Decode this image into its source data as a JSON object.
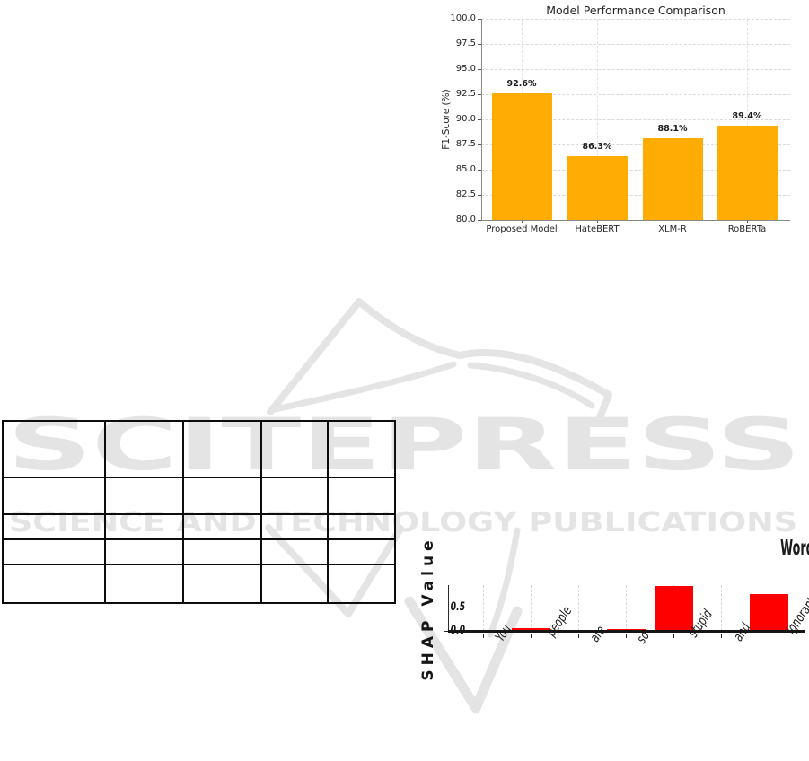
{
  "page": {
    "background": "#ffffff"
  },
  "watermark": {
    "brand_text": "SCITEPRESS",
    "tagline_text": "SCIENCE AND TECHNOLOGY PUBLICATIONS",
    "color": "#e4e4e4"
  },
  "results_table": {
    "columns": 5,
    "rows": 5,
    "cells": [
      [
        "",
        "",
        "",
        "",
        ""
      ],
      [
        "",
        "",
        "",
        "",
        ""
      ],
      [
        "",
        "",
        "",
        "",
        ""
      ],
      [
        "",
        "",
        "",
        "",
        ""
      ],
      [
        "",
        "",
        "",
        "",
        ""
      ]
    ]
  },
  "chart_data": [
    {
      "id": "model-performance",
      "type": "bar",
      "title": "Model Performance Comparison",
      "xlabel": "",
      "ylabel": "F1-Score (%)",
      "categories": [
        "Proposed Model",
        "HateBERT",
        "XLM-R",
        "RoBERTa"
      ],
      "values": [
        92.6,
        86.3,
        88.1,
        89.4
      ],
      "value_labels": [
        "92.6%",
        "86.3%",
        "88.1%",
        "89.4%"
      ],
      "ylim": [
        80.0,
        100.0
      ],
      "yticks": [
        80.0,
        82.5,
        85.0,
        87.5,
        90.0,
        92.5,
        95.0,
        97.5,
        100.0
      ],
      "bar_color": "#FFAD05",
      "grid": true,
      "grid_style": "dashed",
      "legend": null
    },
    {
      "id": "shap-word-importance",
      "type": "bar",
      "title": "Word Importance Based on SHAP for Hate Prediction",
      "xlabel": "",
      "ylabel": "SHAP Value",
      "categories": [
        "You",
        "people",
        "are",
        "so",
        "stupid",
        "and",
        "ignorant"
      ],
      "values": [
        0.0,
        0.05,
        0.0,
        0.04,
        0.96,
        0.0,
        0.78
      ],
      "ylim": [
        0.0,
        1.0
      ],
      "yticks": [
        0.0,
        0.5
      ],
      "bar_color": "#FF0000",
      "grid": true,
      "grid_style": "vertical dashed, horizontal dotted at 0.5",
      "x_tick_rotation_deg": 55,
      "legend": null
    }
  ]
}
